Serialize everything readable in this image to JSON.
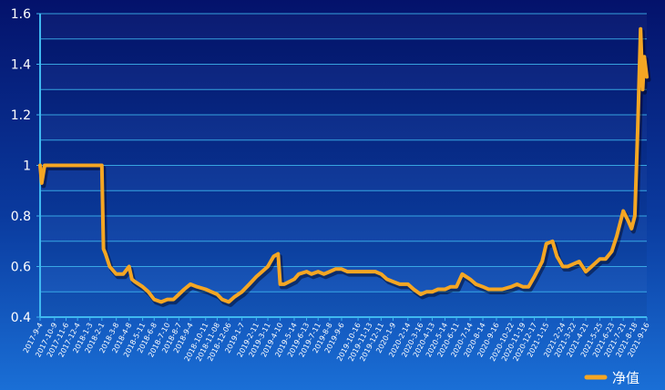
{
  "chart_data": {
    "type": "line",
    "title": "",
    "xlabel": "",
    "ylabel": "",
    "ylim": [
      0.4,
      1.6
    ],
    "yticks": [
      "0.4",
      "0.6",
      "0.8",
      "1",
      "1.2",
      "1.4",
      "1.6"
    ],
    "grid": true,
    "legend_position": "bottom-right",
    "x_tick_labels": [
      "2017-9-4",
      "2017-10-9",
      "2017-11-6",
      "2017-12-4",
      "2018-1-3",
      "2018-2-1",
      "2018-3-8",
      "2018-4-8",
      "2018-5-11",
      "2018-6-8",
      "2018-7-10",
      "2018-8-7",
      "2018-9-4",
      "2018-10-11",
      "2018-11-08",
      "2018-12-06",
      "2019-1-7",
      "2019-2-11",
      "2019-3-11",
      "2019-4-10",
      "2019-5-14",
      "2019-6-13",
      "2019-7-11",
      "2019-8-8",
      "2019-9-6",
      "2019-10-16",
      "2019-11-13",
      "2019-12-11",
      "2020-1-9",
      "2020-2-14",
      "2020-3-16",
      "2020-4-13",
      "2020-5-14",
      "2020-6-11",
      "2020-7-14",
      "2020-8-14",
      "2020-9-16",
      "2020-10-22",
      "2020-11-19",
      "2020-12-17",
      "2021-1-15",
      "2021-2-24",
      "2021-3-22",
      "2021-4-21",
      "2021-5-25",
      "2021-6-23",
      "2021-7-21",
      "2021-8-18",
      "2021-9-16"
    ],
    "series": [
      {
        "name": "净值",
        "color": "#f5a623",
        "x": [
          "2017-9-4",
          "2017-9-8",
          "2017-9-15",
          "2017-10-9",
          "2017-11-6",
          "2017-12-4",
          "2018-1-3",
          "2018-1-20",
          "2018-2-1",
          "2018-2-5",
          "2018-2-10",
          "2018-2-20",
          "2018-3-8",
          "2018-3-25",
          "2018-4-8",
          "2018-4-15",
          "2018-4-22",
          "2018-5-11",
          "2018-5-25",
          "2018-6-8",
          "2018-6-25",
          "2018-7-10",
          "2018-7-25",
          "2018-8-7",
          "2018-8-20",
          "2018-9-4",
          "2018-9-20",
          "2018-10-11",
          "2018-10-25",
          "2018-11-08",
          "2018-11-20",
          "2018-12-06",
          "2018-12-20",
          "2019-1-7",
          "2019-1-25",
          "2019-2-11",
          "2019-2-25",
          "2019-3-11",
          "2019-3-25",
          "2019-4-5",
          "2019-4-10",
          "2019-4-20",
          "2019-5-14",
          "2019-5-25",
          "2019-6-13",
          "2019-6-25",
          "2019-7-11",
          "2019-7-25",
          "2019-8-8",
          "2019-8-22",
          "2019-9-6",
          "2019-9-20",
          "2019-10-16",
          "2019-10-30",
          "2019-11-13",
          "2019-11-27",
          "2019-12-11",
          "2019-12-25",
          "2020-1-9",
          "2020-1-25",
          "2020-2-14",
          "2020-2-28",
          "2020-3-16",
          "2020-3-30",
          "2020-4-13",
          "2020-4-27",
          "2020-5-14",
          "2020-5-28",
          "2020-6-11",
          "2020-6-25",
          "2020-7-14",
          "2020-7-28",
          "2020-8-14",
          "2020-8-28",
          "2020-9-16",
          "2020-9-30",
          "2020-10-22",
          "2020-11-5",
          "2020-11-19",
          "2020-12-3",
          "2020-12-17",
          "2021-1-5",
          "2021-1-15",
          "2021-1-30",
          "2021-2-10",
          "2021-2-24",
          "2021-3-8",
          "2021-3-22",
          "2021-4-5",
          "2021-4-21",
          "2021-5-5",
          "2021-5-25",
          "2021-6-8",
          "2021-6-23",
          "2021-7-5",
          "2021-7-21",
          "2021-8-2",
          "2021-8-10",
          "2021-8-18",
          "2021-8-25",
          "2021-9-1",
          "2021-9-6",
          "2021-9-10",
          "2021-9-16"
        ],
        "values": [
          1.0,
          0.93,
          1.0,
          1.0,
          1.0,
          1.0,
          1.0,
          1.0,
          1.0,
          0.67,
          0.65,
          0.6,
          0.57,
          0.57,
          0.6,
          0.55,
          0.54,
          0.52,
          0.5,
          0.47,
          0.46,
          0.47,
          0.47,
          0.49,
          0.51,
          0.53,
          0.52,
          0.51,
          0.5,
          0.49,
          0.47,
          0.46,
          0.48,
          0.5,
          0.53,
          0.56,
          0.58,
          0.6,
          0.64,
          0.65,
          0.53,
          0.53,
          0.55,
          0.57,
          0.58,
          0.57,
          0.58,
          0.57,
          0.58,
          0.59,
          0.59,
          0.58,
          0.58,
          0.58,
          0.58,
          0.58,
          0.57,
          0.55,
          0.54,
          0.53,
          0.53,
          0.51,
          0.49,
          0.5,
          0.5,
          0.51,
          0.51,
          0.52,
          0.52,
          0.57,
          0.55,
          0.53,
          0.52,
          0.51,
          0.51,
          0.51,
          0.52,
          0.53,
          0.52,
          0.52,
          0.56,
          0.62,
          0.69,
          0.7,
          0.64,
          0.6,
          0.6,
          0.61,
          0.62,
          0.58,
          0.6,
          0.63,
          0.63,
          0.66,
          0.72,
          0.82,
          0.78,
          0.75,
          0.8,
          1.15,
          1.54,
          1.3,
          1.43,
          1.35
        ]
      }
    ]
  }
}
